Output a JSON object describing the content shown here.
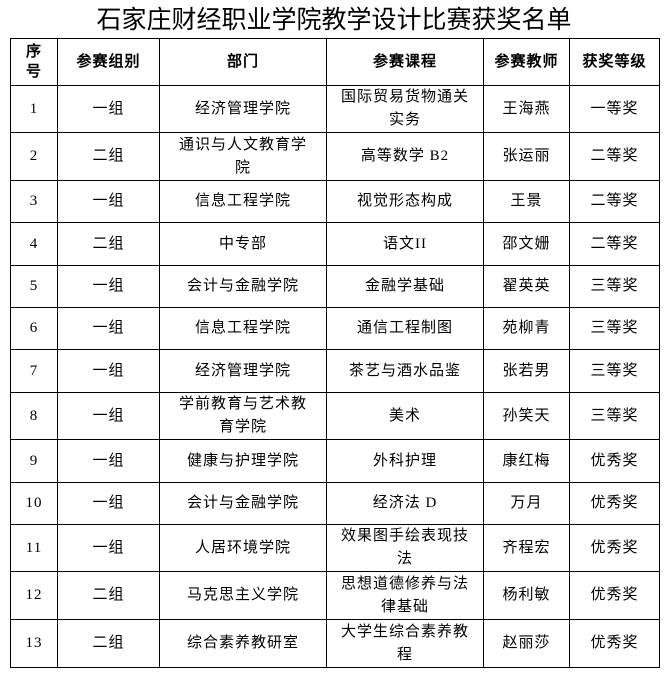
{
  "title": "石家庄财经职业学院教学设计比赛获奖名单",
  "headers": [
    "序号",
    "参赛组别",
    "部门",
    "参赛课程",
    "参赛教师",
    "获奖等级"
  ],
  "rows": [
    [
      "1",
      "一组",
      "经济管理学院",
      "国际贸易货物通关实务",
      "王海燕",
      "一等奖"
    ],
    [
      "2",
      "二组",
      "通识与人文教育学院",
      "高等数学 B2",
      "张运丽",
      "二等奖"
    ],
    [
      "3",
      "一组",
      "信息工程学院",
      "视觉形态构成",
      "王景",
      "二等奖"
    ],
    [
      "4",
      "二组",
      "中专部",
      "语文II",
      "邵文姗",
      "二等奖"
    ],
    [
      "5",
      "一组",
      "会计与金融学院",
      "金融学基础",
      "翟英英",
      "三等奖"
    ],
    [
      "6",
      "一组",
      "信息工程学院",
      "通信工程制图",
      "苑柳青",
      "三等奖"
    ],
    [
      "7",
      "一组",
      "经济管理学院",
      "茶艺与酒水品鉴",
      "张若男",
      "三等奖"
    ],
    [
      "8",
      "一组",
      "学前教育与艺术教育学院",
      "美术",
      "孙笑天",
      "三等奖"
    ],
    [
      "9",
      "一组",
      "健康与护理学院",
      "外科护理",
      "康红梅",
      "优秀奖"
    ],
    [
      "10",
      "一组",
      "会计与金融学院",
      "经济法 D",
      "万月",
      "优秀奖"
    ],
    [
      "11",
      "一组",
      "人居环境学院",
      "效果图手绘表现技法",
      "齐程宏",
      "优秀奖"
    ],
    [
      "12",
      "二组",
      "马克思主义学院",
      "思想道德修养与法律基础",
      "杨利敏",
      "优秀奖"
    ],
    [
      "13",
      "二组",
      "综合素养教研室",
      "大学生综合素养教程",
      "赵丽莎",
      "优秀奖"
    ]
  ]
}
